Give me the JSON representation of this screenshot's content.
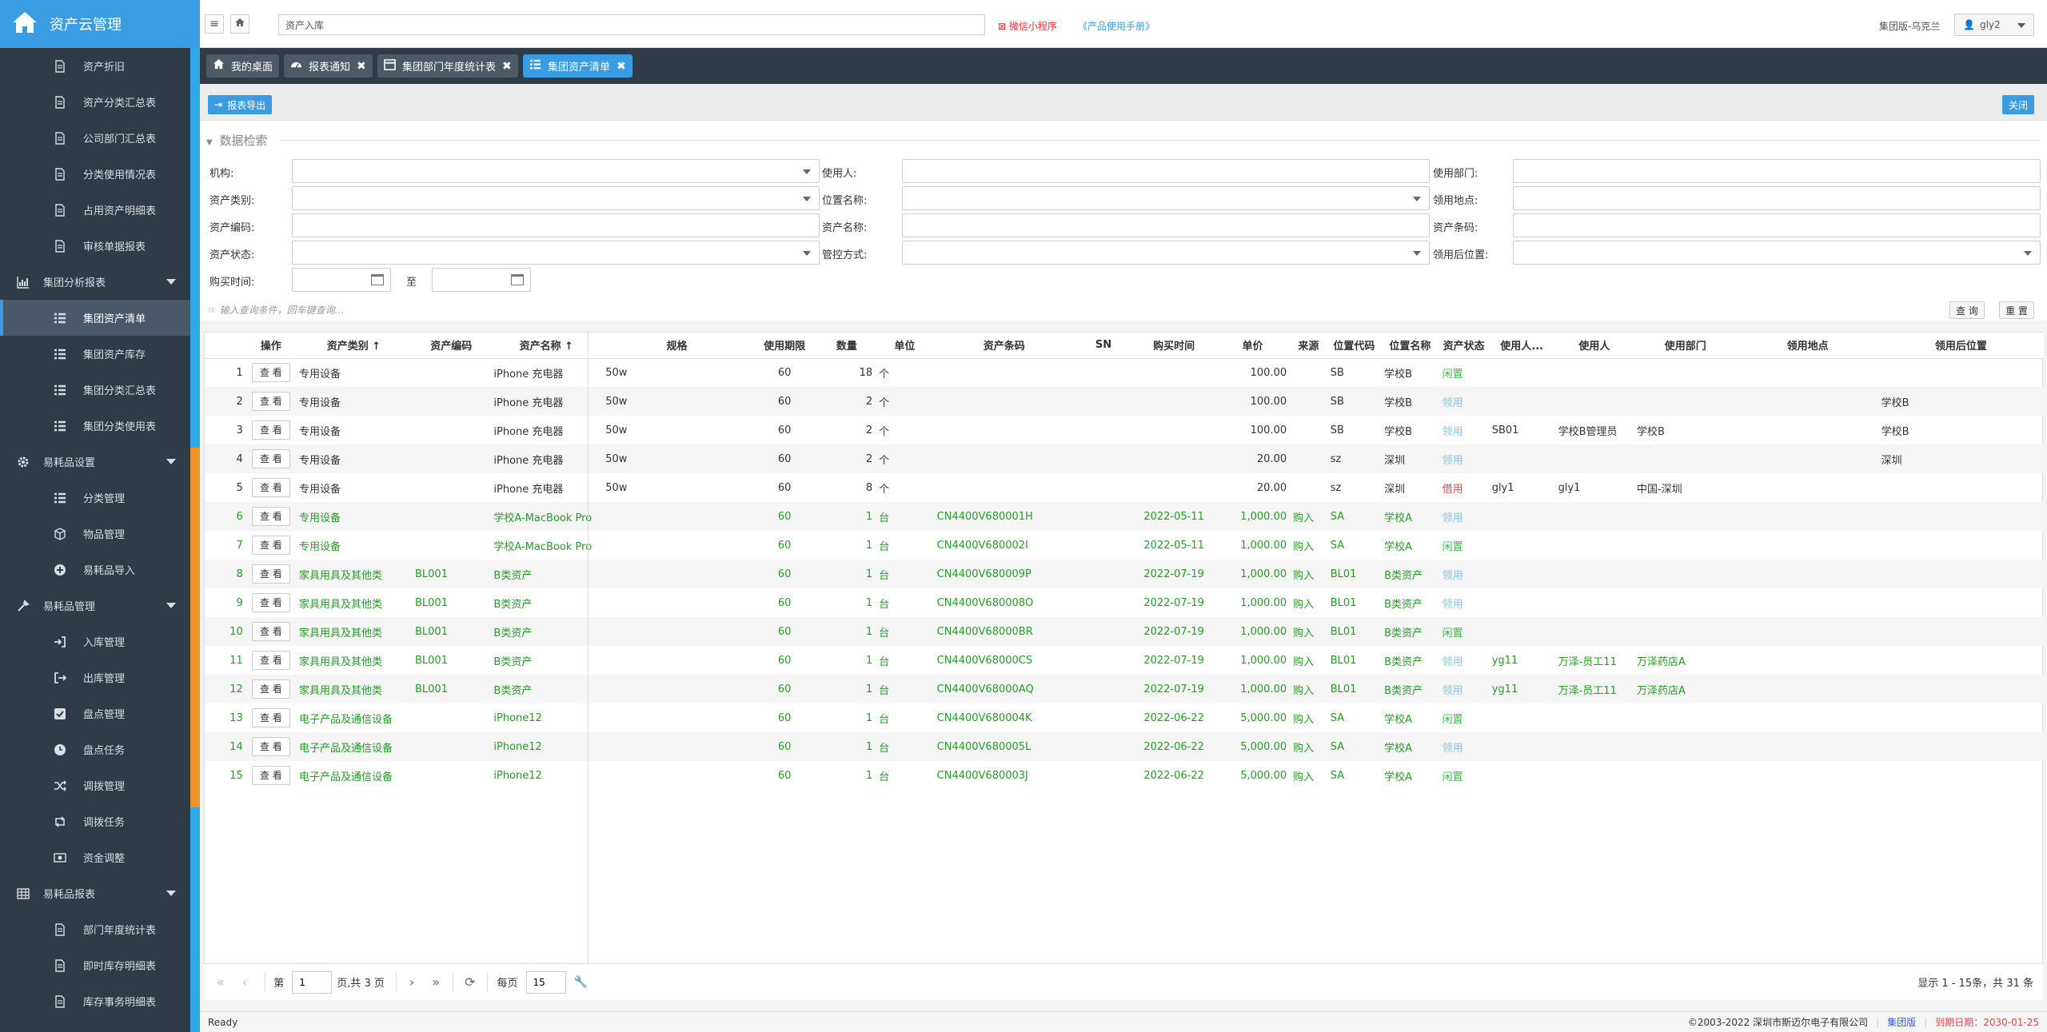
{
  "app": {
    "title": "资产云管理"
  },
  "sidebar": {
    "items": [
      {
        "type": "sub",
        "label": "资产折旧",
        "icon": "doc-icon"
      },
      {
        "type": "sub",
        "label": "资产分类汇总表",
        "icon": "doc-icon"
      },
      {
        "type": "sub",
        "label": "公司部门汇总表",
        "icon": "doc-icon"
      },
      {
        "type": "sub",
        "label": "分类使用情况表",
        "icon": "doc-icon"
      },
      {
        "type": "sub",
        "label": "占用资产明细表",
        "icon": "doc-icon"
      },
      {
        "type": "sub",
        "label": "审核单据报表",
        "icon": "doc-icon"
      },
      {
        "type": "grp",
        "label": "集团分析报表",
        "icon": "bar-chart-icon"
      },
      {
        "type": "sub",
        "label": "集团资产清单",
        "icon": "list-icon",
        "active": true
      },
      {
        "type": "sub",
        "label": "集团资产库存",
        "icon": "list-icon"
      },
      {
        "type": "sub",
        "label": "集团分类汇总表",
        "icon": "list-icon"
      },
      {
        "type": "sub",
        "label": "集团分类使用表",
        "icon": "list-icon"
      },
      {
        "type": "grp",
        "label": "易耗品设置",
        "icon": "gear-icon"
      },
      {
        "type": "sub",
        "label": "分类管理",
        "icon": "list-icon"
      },
      {
        "type": "sub",
        "label": "物品管理",
        "icon": "cube-icon"
      },
      {
        "type": "sub",
        "label": "易耗品导入",
        "icon": "plus-circle-icon"
      },
      {
        "type": "grp",
        "label": "易耗品管理",
        "icon": "tools-icon"
      },
      {
        "type": "sub",
        "label": "入库管理",
        "icon": "sign-in-icon"
      },
      {
        "type": "sub",
        "label": "出库管理",
        "icon": "sign-out-icon"
      },
      {
        "type": "sub",
        "label": "盘点管理",
        "icon": "check-square-icon"
      },
      {
        "type": "sub",
        "label": "盘点任务",
        "icon": "clock-icon"
      },
      {
        "type": "sub",
        "label": "调拨管理",
        "icon": "shuffle-icon"
      },
      {
        "type": "sub",
        "label": "调拨任务",
        "icon": "retweet-icon"
      },
      {
        "type": "sub",
        "label": "资金调整",
        "icon": "money-icon"
      },
      {
        "type": "grp",
        "label": "易耗品报表",
        "icon": "table-icon"
      },
      {
        "type": "sub",
        "label": "部门年度统计表",
        "icon": "doc-icon"
      },
      {
        "type": "sub",
        "label": "即时库存明细表",
        "icon": "doc-icon"
      },
      {
        "type": "sub",
        "label": "库存事务明细表",
        "icon": "doc-icon"
      }
    ]
  },
  "topbar": {
    "search_value": "资产入库",
    "wechat": "微信小程序",
    "manual": "《产品使用手册》",
    "edition": "集团版-乌克兰",
    "user": "gly2"
  },
  "tabs": [
    {
      "label": "我的桌面",
      "icon": "home-icon",
      "closable": false,
      "active": false
    },
    {
      "label": "报表通知",
      "icon": "dashboard-icon",
      "closable": true,
      "active": false
    },
    {
      "label": "集团部门年度统计表",
      "icon": "calendar-icon",
      "closable": true,
      "active": false
    },
    {
      "label": "集团资产清单",
      "icon": "list-icon",
      "closable": true,
      "active": true
    }
  ],
  "toolbar": {
    "export": "报表导出",
    "close": "关闭"
  },
  "search": {
    "legend": "数据检索",
    "labels": {
      "org": "机构:",
      "user": "使用人:",
      "dept": "使用部门:",
      "category": "资产类别:",
      "location": "位置名称:",
      "place": "领用地点:",
      "code": "资产编码:",
      "name": "资产名称:",
      "barcode": "资产条码:",
      "status": "资产状态:",
      "control": "管控方式:",
      "after_loc": "领用后位置:",
      "buytime": "购买时间:",
      "to": "至"
    },
    "hint": "输入查询条件，回车键查询...",
    "query_btn": "查 询",
    "reset_btn": "重 置"
  },
  "table": {
    "headers": [
      "",
      "操作",
      "资产类别",
      "资产编码",
      "资产名称",
      "规格",
      "使用期限",
      "数量",
      "单位",
      "资产条码",
      "SN",
      "购买时间",
      "单价",
      "来源",
      "位置代码",
      "位置名称",
      "资产状态",
      "使用人...",
      "使用人",
      "使用部门",
      "领用地点",
      "领用后位置"
    ],
    "sort_cols": [
      2,
      4
    ],
    "view_label": "查 看",
    "rows": [
      {
        "n": "1",
        "g": false,
        "cat": "专用设备",
        "code": "",
        "name": "iPhone 充电器",
        "spec": "50w",
        "term": "60",
        "qty": "18",
        "unit": "个",
        "bar": "",
        "sn": "",
        "date": "",
        "price": "100.00",
        "src": "",
        "lc": "SB",
        "ln": "学校B",
        "st": "闲置",
        "stc": "idle",
        "uid": "",
        "user": "",
        "dept": "",
        "place": "",
        "after": ""
      },
      {
        "n": "2",
        "g": false,
        "cat": "专用设备",
        "code": "",
        "name": "iPhone 充电器",
        "spec": "50w",
        "term": "60",
        "qty": "2",
        "unit": "个",
        "bar": "",
        "sn": "",
        "date": "",
        "price": "100.00",
        "src": "",
        "lc": "SB",
        "ln": "学校B",
        "st": "领用",
        "stc": "use",
        "uid": "",
        "user": "",
        "dept": "",
        "place": "",
        "after": "学校B"
      },
      {
        "n": "3",
        "g": false,
        "cat": "专用设备",
        "code": "",
        "name": "iPhone 充电器",
        "spec": "50w",
        "term": "60",
        "qty": "2",
        "unit": "个",
        "bar": "",
        "sn": "",
        "date": "",
        "price": "100.00",
        "src": "",
        "lc": "SB",
        "ln": "学校B",
        "st": "领用",
        "stc": "use",
        "uid": "SB01",
        "user": "学校B管理员",
        "dept": "学校B",
        "place": "",
        "after": "学校B"
      },
      {
        "n": "4",
        "g": false,
        "cat": "专用设备",
        "code": "",
        "name": "iPhone 充电器",
        "spec": "50w",
        "term": "60",
        "qty": "2",
        "unit": "个",
        "bar": "",
        "sn": "",
        "date": "",
        "price": "20.00",
        "src": "",
        "lc": "sz",
        "ln": "深圳",
        "st": "领用",
        "stc": "use",
        "uid": "",
        "user": "",
        "dept": "",
        "place": "",
        "after": "深圳"
      },
      {
        "n": "5",
        "g": false,
        "cat": "专用设备",
        "code": "",
        "name": "iPhone 充电器",
        "spec": "50w",
        "term": "60",
        "qty": "8",
        "unit": "个",
        "bar": "",
        "sn": "",
        "date": "",
        "price": "20.00",
        "src": "",
        "lc": "sz",
        "ln": "深圳",
        "st": "借用",
        "stc": "borrow",
        "uid": "gly1",
        "user": "gly1",
        "dept": "中国-深圳",
        "place": "",
        "after": ""
      },
      {
        "n": "6",
        "g": true,
        "cat": "专用设备",
        "code": "",
        "name": "学校A-MacBook Pro",
        "spec": "",
        "term": "60",
        "qty": "1",
        "unit": "台",
        "bar": "CN4400V680001H",
        "sn": "",
        "date": "2022-05-11",
        "price": "1,000.00",
        "src": "购入",
        "lc": "SA",
        "ln": "学校A",
        "st": "领用",
        "stc": "use",
        "uid": "",
        "user": "",
        "dept": "",
        "place": "",
        "after": ""
      },
      {
        "n": "7",
        "g": true,
        "cat": "专用设备",
        "code": "",
        "name": "学校A-MacBook Pro",
        "spec": "",
        "term": "60",
        "qty": "1",
        "unit": "台",
        "bar": "CN4400V680002I",
        "sn": "",
        "date": "2022-05-11",
        "price": "1,000.00",
        "src": "购入",
        "lc": "SA",
        "ln": "学校A",
        "st": "闲置",
        "stc": "idle",
        "uid": "",
        "user": "",
        "dept": "",
        "place": "",
        "after": ""
      },
      {
        "n": "8",
        "g": true,
        "cat": "家具用具及其他类",
        "code": "BL001",
        "name": "B类资产",
        "spec": "",
        "term": "60",
        "qty": "1",
        "unit": "台",
        "bar": "CN4400V680009P",
        "sn": "",
        "date": "2022-07-19",
        "price": "1,000.00",
        "src": "购入",
        "lc": "BL01",
        "ln": "B类资产",
        "st": "领用",
        "stc": "use",
        "uid": "",
        "user": "",
        "dept": "",
        "place": "",
        "after": ""
      },
      {
        "n": "9",
        "g": true,
        "cat": "家具用具及其他类",
        "code": "BL001",
        "name": "B类资产",
        "spec": "",
        "term": "60",
        "qty": "1",
        "unit": "台",
        "bar": "CN4400V680008O",
        "sn": "",
        "date": "2022-07-19",
        "price": "1,000.00",
        "src": "购入",
        "lc": "BL01",
        "ln": "B类资产",
        "st": "领用",
        "stc": "use",
        "uid": "",
        "user": "",
        "dept": "",
        "place": "",
        "after": ""
      },
      {
        "n": "10",
        "g": true,
        "cat": "家具用具及其他类",
        "code": "BL001",
        "name": "B类资产",
        "spec": "",
        "term": "60",
        "qty": "1",
        "unit": "台",
        "bar": "CN4400V68000BR",
        "sn": "",
        "date": "2022-07-19",
        "price": "1,000.00",
        "src": "购入",
        "lc": "BL01",
        "ln": "B类资产",
        "st": "闲置",
        "stc": "idle",
        "uid": "",
        "user": "",
        "dept": "",
        "place": "",
        "after": ""
      },
      {
        "n": "11",
        "g": true,
        "cat": "家具用具及其他类",
        "code": "BL001",
        "name": "B类资产",
        "spec": "",
        "term": "60",
        "qty": "1",
        "unit": "台",
        "bar": "CN4400V68000CS",
        "sn": "",
        "date": "2022-07-19",
        "price": "1,000.00",
        "src": "购入",
        "lc": "BL01",
        "ln": "B类资产",
        "st": "领用",
        "stc": "use",
        "uid": "yg11",
        "user": "万泽-员工11",
        "dept": "万泽药店A",
        "place": "",
        "after": ""
      },
      {
        "n": "12",
        "g": true,
        "cat": "家具用具及其他类",
        "code": "BL001",
        "name": "B类资产",
        "spec": "",
        "term": "60",
        "qty": "1",
        "unit": "台",
        "bar": "CN4400V68000AQ",
        "sn": "",
        "date": "2022-07-19",
        "price": "1,000.00",
        "src": "购入",
        "lc": "BL01",
        "ln": "B类资产",
        "st": "领用",
        "stc": "use",
        "uid": "yg11",
        "user": "万泽-员工11",
        "dept": "万泽药店A",
        "place": "",
        "after": ""
      },
      {
        "n": "13",
        "g": true,
        "cat": "电子产品及通信设备",
        "code": "",
        "name": "iPhone12",
        "spec": "",
        "term": "60",
        "qty": "1",
        "unit": "台",
        "bar": "CN4400V680004K",
        "sn": "",
        "date": "2022-06-22",
        "price": "5,000.00",
        "src": "购入",
        "lc": "SA",
        "ln": "学校A",
        "st": "闲置",
        "stc": "idle",
        "uid": "",
        "user": "",
        "dept": "",
        "place": "",
        "after": ""
      },
      {
        "n": "14",
        "g": true,
        "cat": "电子产品及通信设备",
        "code": "",
        "name": "iPhone12",
        "spec": "",
        "term": "60",
        "qty": "1",
        "unit": "台",
        "bar": "CN4400V680005L",
        "sn": "",
        "date": "2022-06-22",
        "price": "5,000.00",
        "src": "购入",
        "lc": "SA",
        "ln": "学校A",
        "st": "领用",
        "stc": "use",
        "uid": "",
        "user": "",
        "dept": "",
        "place": "",
        "after": ""
      },
      {
        "n": "15",
        "g": true,
        "cat": "电子产品及通信设备",
        "code": "",
        "name": "iPhone12",
        "spec": "",
        "term": "60",
        "qty": "1",
        "unit": "台",
        "bar": "CN4400V680003J",
        "sn": "",
        "date": "2022-06-22",
        "price": "5,000.00",
        "src": "购入",
        "lc": "SA",
        "ln": "学校A",
        "st": "闲置",
        "stc": "idle",
        "uid": "",
        "user": "",
        "dept": "",
        "place": "",
        "after": ""
      }
    ]
  },
  "pager": {
    "page_prefix": "第",
    "page_value": "1",
    "page_suffix": "页,共 3 页",
    "per_page_label": "每页",
    "per_page_value": "15",
    "summary": "显示 1 - 15条，共 31 条"
  },
  "statusbar": {
    "ready": "Ready",
    "copyright": "©2003-2022 深圳市斯迈尔电子有限公司",
    "edition": "集团版",
    "expire": "到期日期：2030-01-25"
  },
  "colors": {
    "sidebar": "#2f3b46",
    "brand": "#3a9de3",
    "accent": "#31a8e8",
    "orange": "#f0932b",
    "green_text": "#2a9a2a",
    "idle": "#3fb84a",
    "use": "#7fc4f0",
    "borrow": "#e44c4c"
  }
}
